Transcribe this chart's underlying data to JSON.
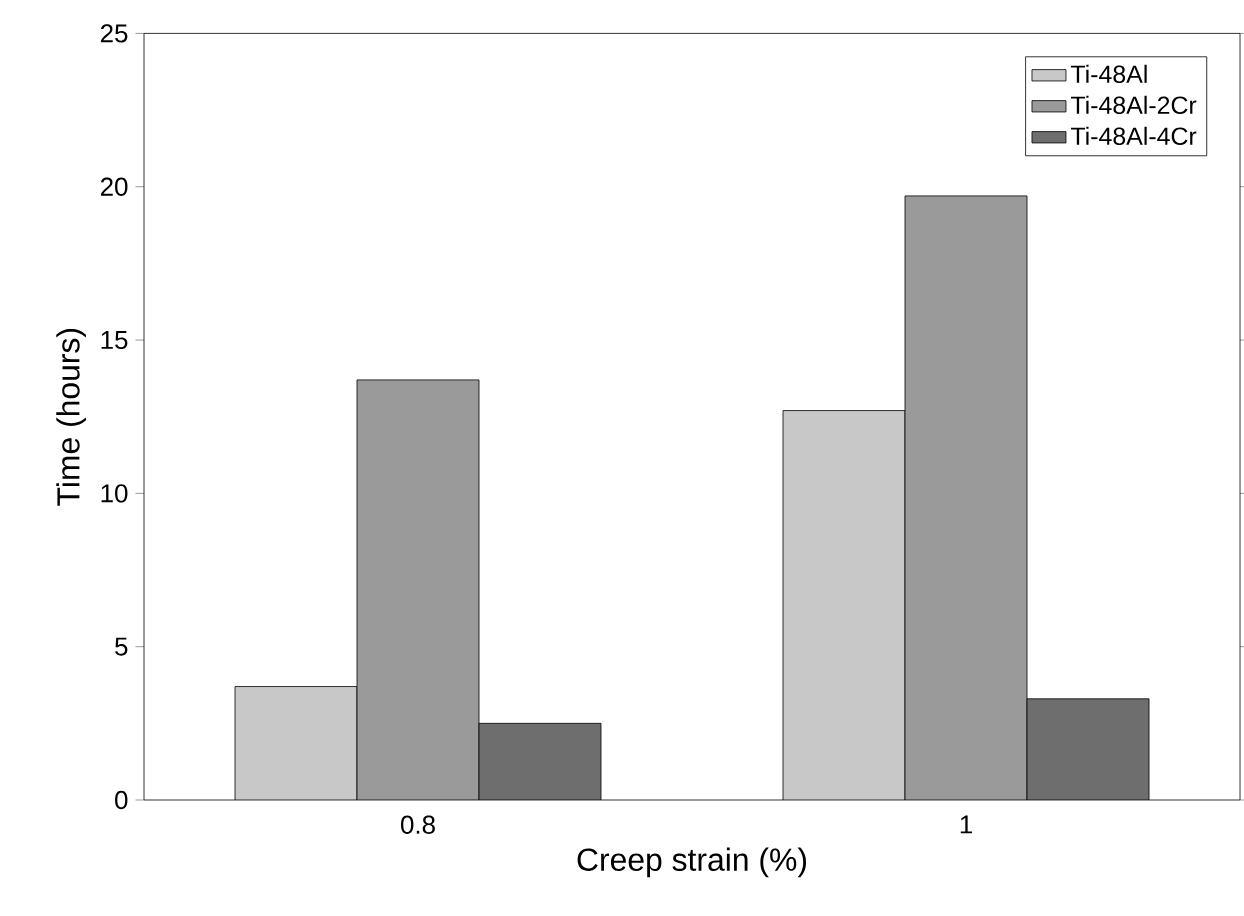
{
  "chart_data": {
    "type": "bar",
    "xlabel": "Creep strain (%)",
    "ylabel": "Time (hours)",
    "categories": [
      "0.8",
      "1"
    ],
    "series": [
      {
        "name": "Ti-48Al",
        "color": "#c8c8c8",
        "values": [
          3.7,
          12.7
        ]
      },
      {
        "name": "Ti-48Al-2Cr",
        "color": "#9a9a9a",
        "values": [
          13.7,
          19.7
        ]
      },
      {
        "name": "Ti-48Al-4Cr",
        "color": "#6e6e6e",
        "values": [
          2.5,
          3.3
        ]
      }
    ],
    "ylim": [
      0,
      25
    ],
    "yticks": [
      0,
      5,
      10,
      15,
      20,
      25
    ],
    "grid": false,
    "legend": "top right"
  }
}
